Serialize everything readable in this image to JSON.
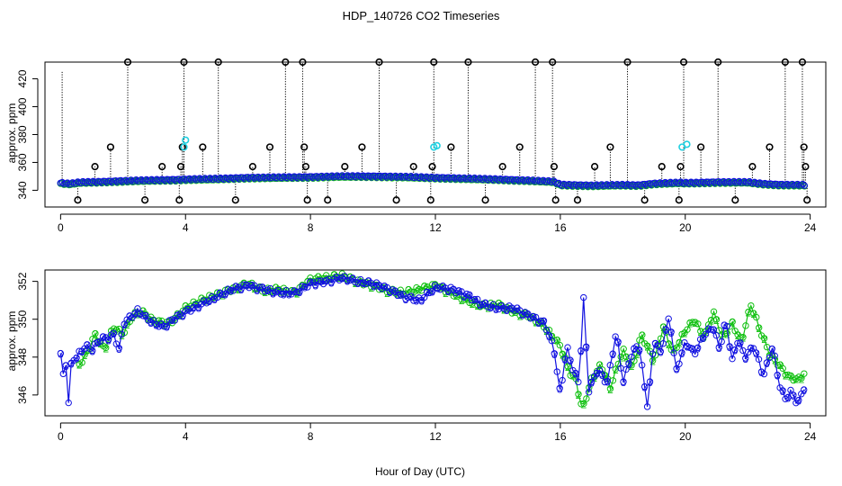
{
  "title": "HDP_140726  CO2 Timeseries",
  "xlabel": "Hour of Day (UTC)",
  "colors": {
    "series1": "#1010e0",
    "series2": "#10c010",
    "spike": "#000000",
    "cyan": "#20d0e0"
  },
  "chart_data": [
    {
      "type": "scatter",
      "ylabel": "approx. ppm",
      "xlim": [
        -0.5,
        24.5
      ],
      "ylim": [
        328,
        432
      ],
      "xticks": [
        0,
        4,
        8,
        12,
        16,
        20,
        24
      ],
      "yticks": [
        340,
        360,
        380,
        400,
        420
      ],
      "baseline_knots": [
        [
          0,
          344.8
        ],
        [
          0.3,
          344.2
        ],
        [
          0.6,
          345.2
        ],
        [
          1.2,
          345.6
        ],
        [
          2.2,
          346.4
        ],
        [
          3.8,
          347.2
        ],
        [
          4.0,
          347.4
        ],
        [
          5,
          347.8
        ],
        [
          6,
          348.6
        ],
        [
          7,
          348.8
        ],
        [
          8,
          349.1
        ],
        [
          9,
          349.6
        ],
        [
          10,
          349.6
        ],
        [
          11,
          349.2
        ],
        [
          12,
          348.6
        ],
        [
          13,
          348.0
        ],
        [
          14,
          347.4
        ],
        [
          15,
          346.6
        ],
        [
          15.8,
          345.8
        ],
        [
          16,
          343.6
        ],
        [
          17,
          343.0
        ],
        [
          18,
          343.4
        ],
        [
          18.5,
          343.2
        ],
        [
          19,
          344.4
        ],
        [
          19.8,
          345.0
        ],
        [
          20,
          344.8
        ],
        [
          21,
          345.4
        ],
        [
          22,
          345.4
        ],
        [
          22.5,
          344.2
        ],
        [
          23,
          343.6
        ],
        [
          23.8,
          343.4
        ]
      ],
      "baseline_range": [
        0,
        23.85
      ],
      "spikes": [
        {
          "x": 0.05,
          "y": 425,
          "mark": false
        },
        {
          "x": 0.55,
          "y": 333,
          "mark": true
        },
        {
          "x": 1.1,
          "y": 357,
          "mark": true
        },
        {
          "x": 1.6,
          "y": 371,
          "mark": true
        },
        {
          "x": 2.15,
          "y": 432,
          "mark": true
        },
        {
          "x": 2.7,
          "y": 333,
          "mark": true
        },
        {
          "x": 3.25,
          "y": 357,
          "mark": true
        },
        {
          "x": 3.8,
          "y": 333,
          "mark": true
        },
        {
          "x": 3.85,
          "y": 357,
          "mark": true
        },
        {
          "x": 3.9,
          "y": 371,
          "mark": true
        },
        {
          "x": 3.95,
          "y": 432,
          "mark": true
        },
        {
          "x": 4.55,
          "y": 371,
          "mark": true
        },
        {
          "x": 5.05,
          "y": 432,
          "mark": true
        },
        {
          "x": 5.6,
          "y": 333,
          "mark": true
        },
        {
          "x": 6.15,
          "y": 357,
          "mark": true
        },
        {
          "x": 6.7,
          "y": 371,
          "mark": true
        },
        {
          "x": 7.2,
          "y": 432,
          "mark": true
        },
        {
          "x": 7.75,
          "y": 432,
          "mark": true
        },
        {
          "x": 7.8,
          "y": 371,
          "mark": true
        },
        {
          "x": 7.85,
          "y": 357,
          "mark": true
        },
        {
          "x": 7.9,
          "y": 333,
          "mark": true
        },
        {
          "x": 8.55,
          "y": 333,
          "mark": true
        },
        {
          "x": 9.1,
          "y": 357,
          "mark": true
        },
        {
          "x": 9.65,
          "y": 371,
          "mark": true
        },
        {
          "x": 10.2,
          "y": 432,
          "mark": true
        },
        {
          "x": 10.75,
          "y": 333,
          "mark": true
        },
        {
          "x": 11.3,
          "y": 357,
          "mark": true
        },
        {
          "x": 11.85,
          "y": 333,
          "mark": true
        },
        {
          "x": 11.9,
          "y": 357,
          "mark": true
        },
        {
          "x": 11.95,
          "y": 432,
          "mark": true
        },
        {
          "x": 12.5,
          "y": 371,
          "mark": true
        },
        {
          "x": 13.05,
          "y": 432,
          "mark": true
        },
        {
          "x": 13.6,
          "y": 333,
          "mark": true
        },
        {
          "x": 14.15,
          "y": 357,
          "mark": true
        },
        {
          "x": 14.7,
          "y": 371,
          "mark": true
        },
        {
          "x": 15.2,
          "y": 432,
          "mark": true
        },
        {
          "x": 15.75,
          "y": 432,
          "mark": true
        },
        {
          "x": 15.8,
          "y": 357,
          "mark": true
        },
        {
          "x": 15.85,
          "y": 333,
          "mark": true
        },
        {
          "x": 16.55,
          "y": 333,
          "mark": true
        },
        {
          "x": 17.1,
          "y": 357,
          "mark": true
        },
        {
          "x": 17.6,
          "y": 371,
          "mark": true
        },
        {
          "x": 18.15,
          "y": 432,
          "mark": true
        },
        {
          "x": 18.7,
          "y": 333,
          "mark": true
        },
        {
          "x": 19.25,
          "y": 357,
          "mark": true
        },
        {
          "x": 19.8,
          "y": 333,
          "mark": true
        },
        {
          "x": 19.85,
          "y": 357,
          "mark": true
        },
        {
          "x": 19.95,
          "y": 432,
          "mark": true
        },
        {
          "x": 20.5,
          "y": 371,
          "mark": true
        },
        {
          "x": 21.05,
          "y": 432,
          "mark": true
        },
        {
          "x": 21.6,
          "y": 333,
          "mark": true
        },
        {
          "x": 22.15,
          "y": 357,
          "mark": true
        },
        {
          "x": 22.7,
          "y": 371,
          "mark": true
        },
        {
          "x": 23.2,
          "y": 432,
          "mark": true
        },
        {
          "x": 23.75,
          "y": 432,
          "mark": true
        },
        {
          "x": 23.8,
          "y": 371,
          "mark": true
        },
        {
          "x": 23.85,
          "y": 357,
          "mark": true
        },
        {
          "x": 23.9,
          "y": 333,
          "mark": true
        }
      ],
      "cyan_points": [
        {
          "x": 3.95,
          "y": 371
        },
        {
          "x": 4.0,
          "y": 376
        },
        {
          "x": 11.95,
          "y": 371
        },
        {
          "x": 12.05,
          "y": 372
        },
        {
          "x": 19.9,
          "y": 371
        },
        {
          "x": 20.05,
          "y": 373
        }
      ]
    },
    {
      "type": "line",
      "ylabel": "approx. ppm",
      "xlim": [
        -0.5,
        24.5
      ],
      "ylim": [
        344.9,
        352.6
      ],
      "xticks": [
        0,
        4,
        8,
        12,
        16,
        20,
        24
      ],
      "yticks": [
        346,
        348,
        350,
        352
      ],
      "series": [
        {
          "marker": "3",
          "knots": [
            [
              0,
              348.2
            ],
            [
              0.1,
              346.8
            ],
            [
              0.15,
              348.2
            ],
            [
              0.25,
              345.5
            ],
            [
              0.35,
              347.8
            ],
            [
              0.5,
              348.0
            ],
            [
              0.8,
              348.6
            ],
            [
              1.0,
              348.4
            ],
            [
              1.3,
              349.0
            ],
            [
              1.5,
              349.0
            ],
            [
              1.7,
              349.2
            ],
            [
              1.9,
              348.3
            ],
            [
              2.0,
              349.8
            ],
            [
              2.3,
              350.2
            ],
            [
              2.5,
              350.5
            ],
            [
              2.7,
              350.1
            ],
            [
              3,
              349.8
            ],
            [
              3.3,
              349.6
            ],
            [
              3.6,
              350.0
            ],
            [
              4,
              350.4
            ],
            [
              4.5,
              350.8
            ],
            [
              5,
              351.2
            ],
            [
              5.5,
              351.6
            ],
            [
              6,
              351.8
            ],
            [
              6.5,
              351.6
            ],
            [
              7,
              351.4
            ],
            [
              7.5,
              351.4
            ],
            [
              8,
              351.9
            ],
            [
              8.5,
              352.0
            ],
            [
              9,
              352.2
            ],
            [
              9.5,
              352.0
            ],
            [
              10,
              351.9
            ],
            [
              10.5,
              351.6
            ],
            [
              11,
              351.2
            ],
            [
              11.5,
              351.0
            ],
            [
              12,
              351.7
            ],
            [
              12.5,
              351.6
            ],
            [
              13,
              351.3
            ],
            [
              13.5,
              350.8
            ],
            [
              14,
              350.6
            ],
            [
              14.5,
              350.6
            ],
            [
              15,
              350.2
            ],
            [
              15.5,
              349.8
            ],
            [
              15.8,
              348.4
            ],
            [
              16,
              346.0
            ],
            [
              16.2,
              348.6
            ],
            [
              16.4,
              347.4
            ],
            [
              16.6,
              346.6
            ],
            [
              16.75,
              351.2
            ],
            [
              16.9,
              346.2
            ],
            [
              17.2,
              347.4
            ],
            [
              17.5,
              346.6
            ],
            [
              17.8,
              349.4
            ],
            [
              18,
              346.6
            ],
            [
              18.2,
              347.8
            ],
            [
              18.5,
              348.8
            ],
            [
              18.8,
              345.3
            ],
            [
              19,
              349.0
            ],
            [
              19.2,
              348.2
            ],
            [
              19.5,
              350.2
            ],
            [
              19.7,
              347.2
            ],
            [
              20,
              348.8
            ],
            [
              20.3,
              348.2
            ],
            [
              20.6,
              349.2
            ],
            [
              20.9,
              349.6
            ],
            [
              21.1,
              348.4
            ],
            [
              21.3,
              350.0
            ],
            [
              21.5,
              347.8
            ],
            [
              21.7,
              349.0
            ],
            [
              21.9,
              348.0
            ],
            [
              22.2,
              348.6
            ],
            [
              22.5,
              347.0
            ],
            [
              22.8,
              348.6
            ],
            [
              23,
              346.6
            ],
            [
              23.2,
              345.8
            ],
            [
              23.4,
              346.2
            ],
            [
              23.6,
              345.5
            ],
            [
              23.8,
              346.4
            ]
          ]
        },
        {
          "marker": "2",
          "knots": [
            [
              0.6,
              347.6
            ],
            [
              0.9,
              348.4
            ],
            [
              1.1,
              349.2
            ],
            [
              1.4,
              348.4
            ],
            [
              1.7,
              349.6
            ],
            [
              2.0,
              349.2
            ],
            [
              2.3,
              350.2
            ],
            [
              2.6,
              350.4
            ],
            [
              3,
              349.9
            ],
            [
              3.5,
              349.8
            ],
            [
              4,
              350.6
            ],
            [
              4.5,
              351.0
            ],
            [
              5,
              351.3
            ],
            [
              5.5,
              351.6
            ],
            [
              6,
              351.9
            ],
            [
              6.5,
              351.5
            ],
            [
              7,
              351.6
            ],
            [
              7.5,
              351.4
            ],
            [
              8,
              352.1
            ],
            [
              8.5,
              352.2
            ],
            [
              9,
              352.3
            ],
            [
              9.5,
              352.0
            ],
            [
              10,
              351.8
            ],
            [
              10.5,
              351.5
            ],
            [
              11,
              351.4
            ],
            [
              11.5,
              351.6
            ],
            [
              12,
              351.8
            ],
            [
              12.5,
              351.4
            ],
            [
              13,
              351.0
            ],
            [
              13.5,
              350.7
            ],
            [
              14,
              350.8
            ],
            [
              14.5,
              350.4
            ],
            [
              15,
              350.2
            ],
            [
              15.5,
              349.6
            ],
            [
              16,
              348.6
            ],
            [
              16.3,
              347.2
            ],
            [
              16.5,
              346.8
            ],
            [
              16.7,
              345.2
            ],
            [
              17,
              346.8
            ],
            [
              17.3,
              347.6
            ],
            [
              17.6,
              346.4
            ],
            [
              18,
              348.4
            ],
            [
              18.3,
              347.4
            ],
            [
              18.6,
              349.2
            ],
            [
              19,
              347.8
            ],
            [
              19.3,
              349.6
            ],
            [
              19.6,
              348.2
            ],
            [
              20,
              349.4
            ],
            [
              20.3,
              350.0
            ],
            [
              20.6,
              349.0
            ],
            [
              20.9,
              350.4
            ],
            [
              21.2,
              349.0
            ],
            [
              21.5,
              349.8
            ],
            [
              21.8,
              348.8
            ],
            [
              22.1,
              350.8
            ],
            [
              22.4,
              349.4
            ],
            [
              22.7,
              348.2
            ],
            [
              23,
              347.6
            ],
            [
              23.3,
              347.0
            ],
            [
              23.6,
              346.8
            ],
            [
              23.85,
              347.2
            ]
          ]
        }
      ]
    }
  ]
}
